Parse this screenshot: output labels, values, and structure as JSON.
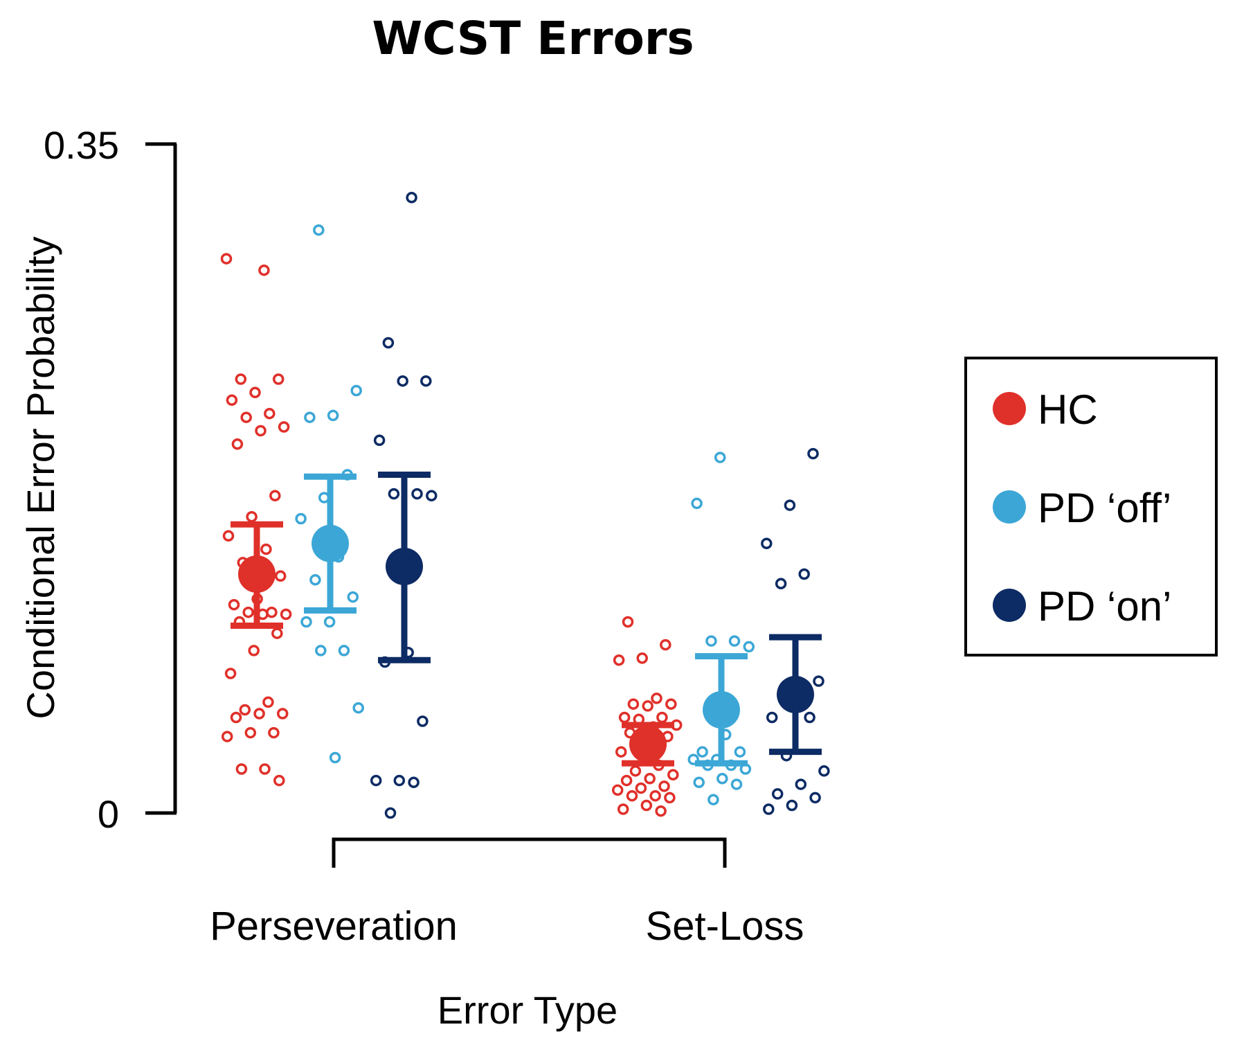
{
  "chart_data": {
    "type": "scatter",
    "title": "WCST Errors",
    "xlabel": "Error Type",
    "ylabel": "Conditional Error Probability",
    "ylim": [
      0,
      0.35
    ],
    "yticks": [
      {
        "value": 0,
        "label": "0"
      },
      {
        "value": 0.35,
        "label": "0.35"
      }
    ],
    "categories": [
      "Perseveration",
      "Set-Loss"
    ],
    "legend_position": "right",
    "series": [
      {
        "name": "HC",
        "color": "#e0302a",
        "summary": [
          {
            "category": "Perseveration",
            "mean": 0.125,
            "err_low": 0.098,
            "err_high": 0.151
          },
          {
            "category": "Set-Loss",
            "mean": 0.036,
            "err_low": 0.026,
            "err_high": 0.046
          }
        ],
        "points": [
          {
            "category": "Perseveration",
            "values": [
              0.29,
              0.284,
              0.227,
              0.227,
              0.22,
              0.216,
              0.209,
              0.207,
              0.202,
              0.2,
              0.193,
              0.166,
              0.155,
              0.145,
              0.138,
              0.131,
              0.124,
              0.112,
              0.109,
              0.105,
              0.105,
              0.104,
              0.104,
              0.1,
              0.094,
              0.085,
              0.073,
              0.058,
              0.054,
              0.052,
              0.052,
              0.05,
              0.042,
              0.042,
              0.04,
              0.023,
              0.023,
              0.017
            ]
          },
          {
            "category": "Set-Loss",
            "values": [
              0.1,
              0.088,
              0.081,
              0.08,
              0.06,
              0.057,
              0.057,
              0.056,
              0.05,
              0.05,
              0.049,
              0.046,
              0.045,
              0.042,
              0.04,
              0.033,
              0.032,
              0.025,
              0.022,
              0.02,
              0.018,
              0.017,
              0.014,
              0.013,
              0.012,
              0.009,
              0.009,
              0.008,
              0.004,
              0.002,
              0.001
            ]
          }
        ]
      },
      {
        "name": "PD ‘off’",
        "color": "#3ca7d6",
        "summary": [
          {
            "category": "Perseveration",
            "mean": 0.141,
            "err_low": 0.106,
            "err_high": 0.176
          },
          {
            "category": "Set-Loss",
            "mean": 0.054,
            "err_low": 0.026,
            "err_high": 0.082
          }
        ],
        "points": [
          {
            "category": "Perseveration",
            "values": [
              0.305,
              0.221,
              0.208,
              0.207,
              0.177,
              0.165,
              0.154,
              0.134,
              0.122,
              0.113,
              0.1,
              0.1,
              0.085,
              0.085,
              0.055,
              0.029
            ]
          },
          {
            "category": "Set-Loss",
            "values": [
              0.186,
              0.162,
              0.09,
              0.09,
              0.087,
              0.041,
              0.032,
              0.032,
              0.028,
              0.028,
              0.025,
              0.025,
              0.023,
              0.018,
              0.016,
              0.015,
              0.007
            ]
          }
        ]
      },
      {
        "name": "PD ‘on’",
        "color": "#0d2b64",
        "summary": [
          {
            "category": "Perseveration",
            "mean": 0.129,
            "err_low": 0.08,
            "err_high": 0.177
          },
          {
            "category": "Set-Loss",
            "mean": 0.062,
            "err_low": 0.032,
            "err_high": 0.092
          }
        ],
        "points": [
          {
            "category": "Perseveration",
            "values": [
              0.322,
              0.246,
              0.226,
              0.226,
              0.195,
              0.167,
              0.167,
              0.166,
              0.084,
              0.079,
              0.048,
              0.017,
              0.017,
              0.016,
              0.0
            ]
          },
          {
            "category": "Set-Loss",
            "values": [
              0.188,
              0.161,
              0.141,
              0.125,
              0.12,
              0.069,
              0.062,
              0.05,
              0.05,
              0.03,
              0.022,
              0.015,
              0.01,
              0.008,
              0.004,
              0.002
            ]
          }
        ]
      }
    ]
  }
}
